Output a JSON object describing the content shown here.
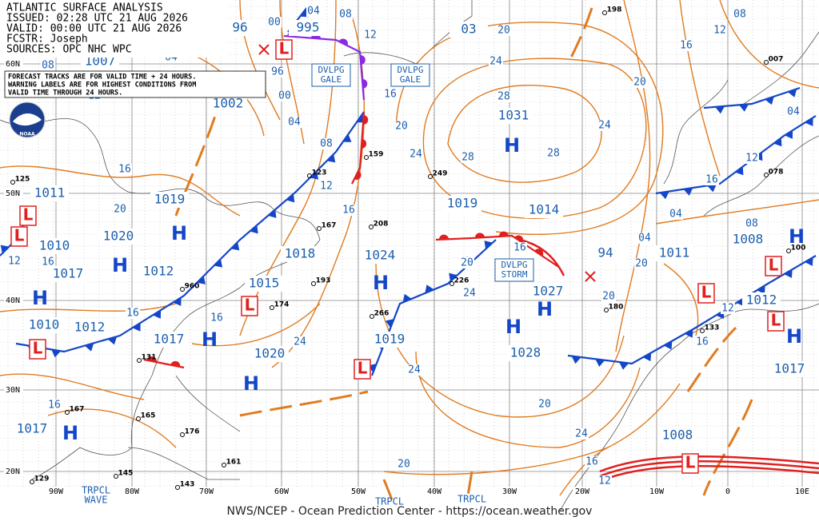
{
  "header": {
    "lines": [
      "ATLANTIC SURFACE ANALYSIS",
      "ISSUED: 02:28 UTC 21 AUG 2026",
      "VALID:  00:00 UTC 21 AUG 2026",
      "FCSTR:  Joseph",
      "SOURCES: OPC NHC WPC"
    ]
  },
  "note": [
    "FORECAST TRACKS ARE FOR VALID TIME + 24 HOURS.",
    "WARNING LABELS ARE FOR HIGHEST CONDITIONS FROM",
    "VALID TIME THROUGH 24 HOURS."
  ],
  "logo": "NOAA",
  "pressure_labels": [
    "995",
    "1007",
    "1002",
    "1011",
    "1019",
    "1020",
    "1010",
    "1012",
    "1017",
    "1010",
    "1012",
    "1017",
    "1018",
    "1015",
    "1024",
    "1020",
    "1019",
    "1031",
    "1019",
    "1014",
    "1027",
    "1028",
    "94",
    "1011",
    "1008",
    "1012",
    "1017",
    "1008",
    "1017",
    "96",
    "03"
  ],
  "high_letter": "H",
  "low_letter": "L",
  "isobar_labels": [
    "04",
    "08",
    "12",
    "16",
    "20",
    "24",
    "28",
    "20",
    "24",
    "28",
    "28",
    "24",
    "20",
    "16",
    "12",
    "08",
    "04",
    "16",
    "12",
    "08",
    "12",
    "04",
    "20",
    "24",
    "20",
    "24",
    "16",
    "12",
    "20",
    "24",
    "20",
    "24",
    "20",
    "16",
    "16",
    "12",
    "08",
    "04",
    "00",
    "96",
    "16",
    "16",
    "16",
    "16",
    "12",
    "08",
    "00",
    "04",
    "12",
    "16",
    "12",
    "16",
    "20",
    "04"
  ],
  "warnings": [
    [
      "DVLPG",
      "GALE"
    ],
    [
      "DVLPG",
      "GALE"
    ],
    [
      "DVLPG",
      "STORM"
    ]
  ],
  "station_values": [
    "198",
    "159",
    "249",
    "208",
    "193",
    "174",
    "226",
    "266",
    "180",
    "133",
    "078",
    "100",
    "131",
    "161",
    "176",
    "167",
    "165",
    "145",
    "143",
    "129",
    "125",
    "123",
    "167",
    "960",
    "007"
  ],
  "lat_labels": [
    "60N",
    "50N",
    "40N",
    "30N",
    "20N"
  ],
  "lon_labels": [
    "90W",
    "80W",
    "70W",
    "60W",
    "50W",
    "40W",
    "30W",
    "20W",
    "10W",
    "0",
    "10E"
  ],
  "tropical": [
    [
      "TRPCL",
      "WAVE"
    ],
    [
      "TRPCL"
    ],
    [
      "TRPCL"
    ]
  ],
  "footer": "NWS/NCEP - Ocean Prediction Center - https://ocean.weather.gov"
}
